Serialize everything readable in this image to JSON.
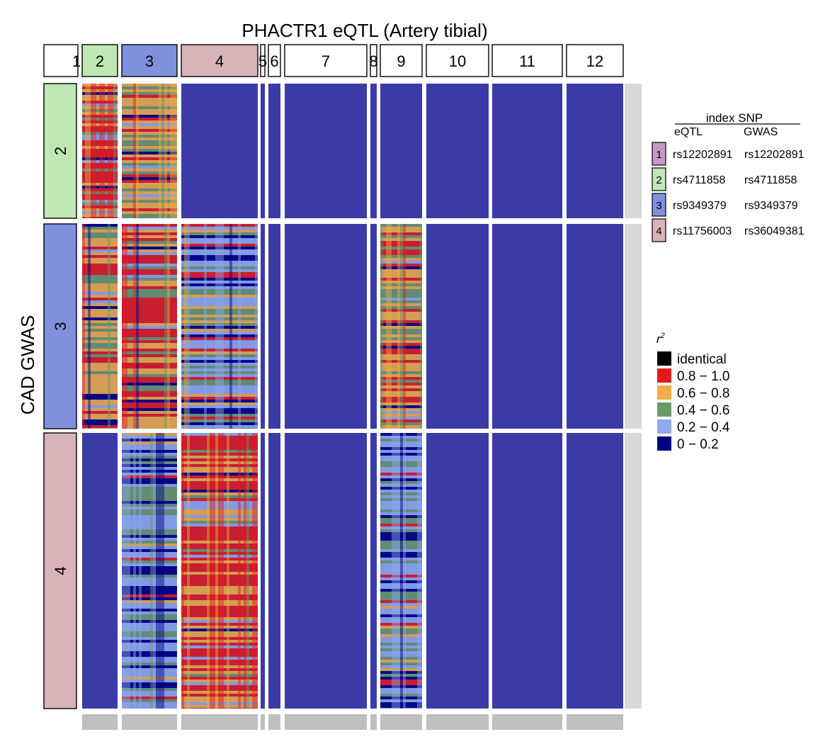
{
  "chart_data": {
    "type": "heatmap",
    "title": "PHACTR1 eQTL (Artery tibial)",
    "ylabel": "CAD GWAS",
    "xlabel": "",
    "column_blocks": [
      {
        "label": "1",
        "color": "#ffffff"
      },
      {
        "label": "2",
        "color": "#bfe6b3"
      },
      {
        "label": "3",
        "color": "#8090dd"
      },
      {
        "label": "4",
        "color": "#d8b4b8"
      },
      {
        "label": "5",
        "color": "#ffffff"
      },
      {
        "label": "6",
        "color": "#ffffff"
      },
      {
        "label": "7",
        "color": "#ffffff"
      },
      {
        "label": "8",
        "color": "#ffffff"
      },
      {
        "label": "9",
        "color": "#ffffff"
      },
      {
        "label": "10",
        "color": "#ffffff"
      },
      {
        "label": "11",
        "color": "#ffffff"
      },
      {
        "label": "12",
        "color": "#ffffff"
      }
    ],
    "row_blocks": [
      {
        "label": "2",
        "color": "#bfe6b3"
      },
      {
        "label": "3",
        "color": "#8090dd"
      },
      {
        "label": "4",
        "color": "#d8b4b8"
      }
    ],
    "index_snp_legend": {
      "title": "index SNP",
      "headers": [
        "eQTL",
        "GWAS"
      ],
      "rows": [
        {
          "id": "1",
          "color": "#c49ac4",
          "eqtl": "rs12202891",
          "gwas": "rs12202891"
        },
        {
          "id": "2",
          "color": "#bfe6b3",
          "eqtl": "rs4711858",
          "gwas": "rs4711858"
        },
        {
          "id": "3",
          "color": "#8090dd",
          "eqtl": "rs9349379",
          "gwas": "rs9349379"
        },
        {
          "id": "4",
          "color": "#d8b4b8",
          "eqtl": "rs11756003",
          "gwas": "rs36049381"
        }
      ]
    },
    "color_legend": {
      "title": "r",
      "title_sup": "2",
      "entries": [
        {
          "label": "identical",
          "color": "#000000"
        },
        {
          "label": "0.8 − 1.0",
          "color": "#e31a1c"
        },
        {
          "label": "0.6 − 0.8",
          "color": "#f0ae45"
        },
        {
          "label": "0.4 − 0.6",
          "color": "#6a9a6a"
        },
        {
          "label": "0.2 − 0.4",
          "color": "#8faaee"
        },
        {
          "label": "0 − 0.2",
          "color": "#000080"
        }
      ]
    },
    "cells": [
      {
        "row": "2",
        "col": "2",
        "dominant": "0.8 − 1.0"
      },
      {
        "row": "2",
        "col": "3",
        "dominant": "0.6 − 0.8"
      },
      {
        "row": "3",
        "col": "2",
        "dominant": "0.6 − 0.8"
      },
      {
        "row": "3",
        "col": "3",
        "dominant": "0.8 − 1.0"
      },
      {
        "row": "3",
        "col": "4",
        "dominant": "0.2 − 0.4"
      },
      {
        "row": "3",
        "col": "9",
        "dominant": "0.6 − 0.8"
      },
      {
        "row": "4",
        "col": "3",
        "dominant": "0.2 − 0.4"
      },
      {
        "row": "4",
        "col": "4",
        "dominant": "0.8 − 1.0"
      },
      {
        "row": "4",
        "col": "9",
        "dominant": "0.2 − 0.4"
      }
    ],
    "background_bin": "0 − 0.2"
  }
}
